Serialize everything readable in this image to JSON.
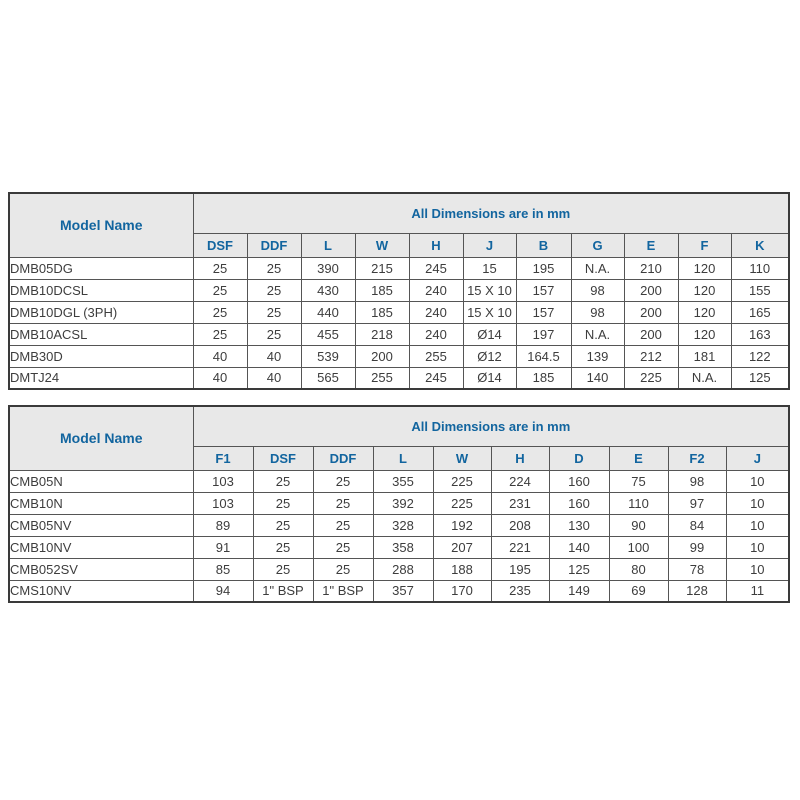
{
  "colors": {
    "header_text": "#12659f",
    "header_bg": "#e8e8e8",
    "border_inner": "#555555",
    "border_outer": "#3a3a3a",
    "data_text": "#3d3d3d",
    "page_bg": "#ffffff"
  },
  "tables": [
    {
      "model_header": "Model  Name",
      "dims_header": "All Dimensions are in mm",
      "columns": [
        "DSF",
        "DDF",
        "L",
        "W",
        "H",
        "J",
        "B",
        "G",
        "E",
        "F",
        "K"
      ],
      "rows": [
        {
          "model": "DMB05DG",
          "values": [
            "25",
            "25",
            "390",
            "215",
            "245",
            "15",
            "195",
            "N.A.",
            "210",
            "120",
            "110"
          ]
        },
        {
          "model": "DMB10DCSL",
          "values": [
            "25",
            "25",
            "430",
            "185",
            "240",
            "15 X 10",
            "157",
            "98",
            "200",
            "120",
            "155"
          ]
        },
        {
          "model": "DMB10DGL (3PH)",
          "values": [
            "25",
            "25",
            "440",
            "185",
            "240",
            "15 X 10",
            "157",
            "98",
            "200",
            "120",
            "165"
          ]
        },
        {
          "model": "DMB10ACSL",
          "values": [
            "25",
            "25",
            "455",
            "218",
            "240",
            "Ø14",
            "197",
            "N.A.",
            "200",
            "120",
            "163"
          ]
        },
        {
          "model": "DMB30D",
          "values": [
            "40",
            "40",
            "539",
            "200",
            "255",
            "Ø12",
            "164.5",
            "139",
            "212",
            "181",
            "122"
          ]
        },
        {
          "model": "DMTJ24",
          "values": [
            "40",
            "40",
            "565",
            "255",
            "245",
            "Ø14",
            "185",
            "140",
            "225",
            "N.A.",
            "125"
          ]
        }
      ]
    },
    {
      "model_header": "Model  Name",
      "dims_header": "All Dimensions are in mm",
      "columns": [
        "F1",
        "DSF",
        "DDF",
        "L",
        "W",
        "H",
        "D",
        "E",
        "F2",
        "J"
      ],
      "rows": [
        {
          "model": "CMB05N",
          "values": [
            "103",
            "25",
            "25",
            "355",
            "225",
            "224",
            "160",
            "75",
            "98",
            "10"
          ]
        },
        {
          "model": "CMB10N",
          "values": [
            "103",
            "25",
            "25",
            "392",
            "225",
            "231",
            "160",
            "110",
            "97",
            "10"
          ]
        },
        {
          "model": "CMB05NV",
          "values": [
            "89",
            "25",
            "25",
            "328",
            "192",
            "208",
            "130",
            "90",
            "84",
            "10"
          ]
        },
        {
          "model": "CMB10NV",
          "values": [
            "91",
            "25",
            "25",
            "358",
            "207",
            "221",
            "140",
            "100",
            "99",
            "10"
          ]
        },
        {
          "model": "CMB052SV",
          "values": [
            "85",
            "25",
            "25",
            "288",
            "188",
            "195",
            "125",
            "80",
            "78",
            "10"
          ]
        },
        {
          "model": "CMS10NV",
          "values": [
            "94",
            "1\" BSP",
            "1\" BSP",
            "357",
            "170",
            "235",
            "149",
            "69",
            "128",
            "11"
          ]
        }
      ]
    }
  ]
}
